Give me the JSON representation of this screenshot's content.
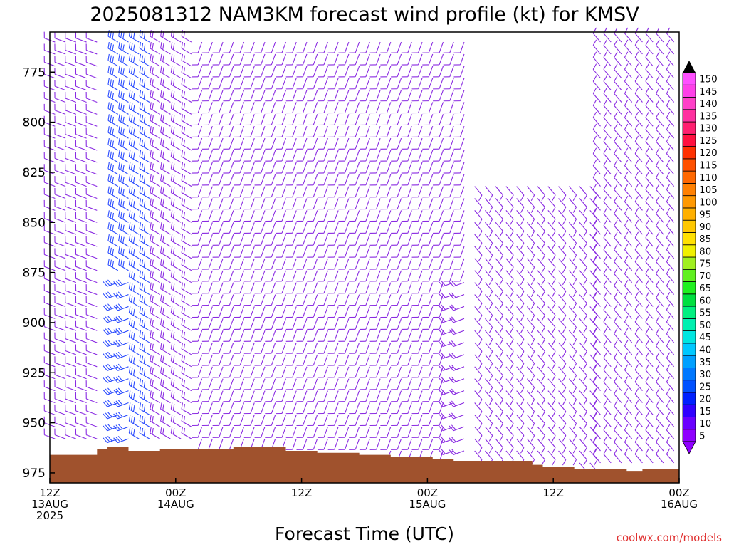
{
  "chart_data": {
    "type": "wind-barb time-height profile",
    "title": "2025081312 NAM3KM forecast wind profile (kt) for KMSV",
    "xlabel": "Forecast Time (UTC)",
    "ylabel": "",
    "credit": "coolwx.com/models",
    "y_axis": {
      "units": "hPa",
      "reversed": true,
      "range": [
        755,
        980
      ],
      "ticks": [
        {
          "value": 775,
          "label": "775"
        },
        {
          "value": 800,
          "label": "800"
        },
        {
          "value": 825,
          "label": "825"
        },
        {
          "value": 850,
          "label": "850"
        },
        {
          "value": 875,
          "label": "875"
        },
        {
          "value": 900,
          "label": "900"
        },
        {
          "value": 925,
          "label": "925"
        },
        {
          "value": 950,
          "label": "950"
        },
        {
          "value": 975,
          "label": "975"
        }
      ]
    },
    "x_axis": {
      "units": "forecast hour from 2025-08-13 12Z",
      "range": [
        0,
        60
      ],
      "ticks": [
        {
          "value": 0,
          "line1": "12Z",
          "line2": "13AUG",
          "line3": "2025"
        },
        {
          "value": 12,
          "line1": "00Z",
          "line2": "14AUG",
          "line3": ""
        },
        {
          "value": 24,
          "line1": "12Z",
          "line2": "",
          "line3": ""
        },
        {
          "value": 36,
          "line1": "00Z",
          "line2": "15AUG",
          "line3": ""
        },
        {
          "value": 48,
          "line1": "12Z",
          "line2": "",
          "line3": ""
        },
        {
          "value": 60,
          "line1": "00Z",
          "line2": "16AUG",
          "line3": ""
        }
      ]
    },
    "colorbar": {
      "units": "kt",
      "levels": [
        "5",
        "10",
        "15",
        "20",
        "25",
        "30",
        "35",
        "40",
        "45",
        "50",
        "55",
        "60",
        "65",
        "70",
        "75",
        "80",
        "85",
        "90",
        "95",
        "100",
        "105",
        "110",
        "115",
        "120",
        "125",
        "130",
        "135",
        "140",
        "145",
        "150"
      ],
      "colors": [
        "#8f00ff",
        "#6a00ff",
        "#3000ff",
        "#0020ff",
        "#0050ff",
        "#0078ff",
        "#00a0ff",
        "#00c8ff",
        "#00e6e0",
        "#00f0b0",
        "#00f080",
        "#00e040",
        "#20f020",
        "#60f020",
        "#a0f020",
        "#f0f000",
        "#ffe000",
        "#ffc800",
        "#ffb000",
        "#ff9800",
        "#ff8000",
        "#ff6800",
        "#ff5000",
        "#ff3000",
        "#ff1040",
        "#ff2070",
        "#ff30a0",
        "#ff40c8",
        "#ff40e8",
        "#ff50ff"
      ]
    },
    "terrain_color": "#a0522d",
    "barb_color_light": "#8a2be2",
    "barb_color_moderate": "#2a4bff",
    "terrain_surface_pressure": [
      {
        "hour": 0,
        "p": 966
      },
      {
        "hour": 4.5,
        "p": 963
      },
      {
        "hour": 5.5,
        "p": 962
      },
      {
        "hour": 7.5,
        "p": 964
      },
      {
        "hour": 10.5,
        "p": 963
      },
      {
        "hour": 17.5,
        "p": 962
      },
      {
        "hour": 22.5,
        "p": 964
      },
      {
        "hour": 25.5,
        "p": 965
      },
      {
        "hour": 29.5,
        "p": 966
      },
      {
        "hour": 32.5,
        "p": 967
      },
      {
        "hour": 36.5,
        "p": 968
      },
      {
        "hour": 38.5,
        "p": 969
      },
      {
        "hour": 46,
        "p": 971
      },
      {
        "hour": 47,
        "p": 972
      },
      {
        "hour": 50,
        "p": 973
      },
      {
        "hour": 55,
        "p": 974
      },
      {
        "hour": 56.5,
        "p": 973
      },
      {
        "hour": 58,
        "p": 973
      },
      {
        "hour": 60,
        "p": 973
      }
    ],
    "wind_regimes": [
      {
        "hours": [
          0,
          5
        ],
        "p_range": [
          755,
          960
        ],
        "direction_deg": 290,
        "speed_kt": 12
      },
      {
        "hours": [
          6,
          10
        ],
        "p_range": [
          755,
          960
        ],
        "direction_deg": 300,
        "speed_kt": 25
      },
      {
        "hours": [
          6,
          8
        ],
        "p_range": [
          880,
          960
        ],
        "direction_deg": 250,
        "speed_kt": 30
      },
      {
        "hours": [
          10,
          14
        ],
        "p_range": [
          755,
          960
        ],
        "direction_deg": 300,
        "speed_kt": 15
      },
      {
        "hours": [
          14,
          40
        ],
        "p_range": [
          755,
          965
        ],
        "direction_deg": 200,
        "speed_kt": 8
      },
      {
        "hours": [
          38,
          44
        ],
        "p_range": [
          880,
          965
        ],
        "direction_deg": 250,
        "speed_kt": 18
      },
      {
        "hours": [
          40,
          52
        ],
        "p_range": [
          830,
          970
        ],
        "direction_deg": 140,
        "speed_kt": 7
      },
      {
        "hours": [
          52,
          60
        ],
        "p_range": [
          755,
          970
        ],
        "direction_deg": 320,
        "speed_kt": 10
      }
    ]
  }
}
